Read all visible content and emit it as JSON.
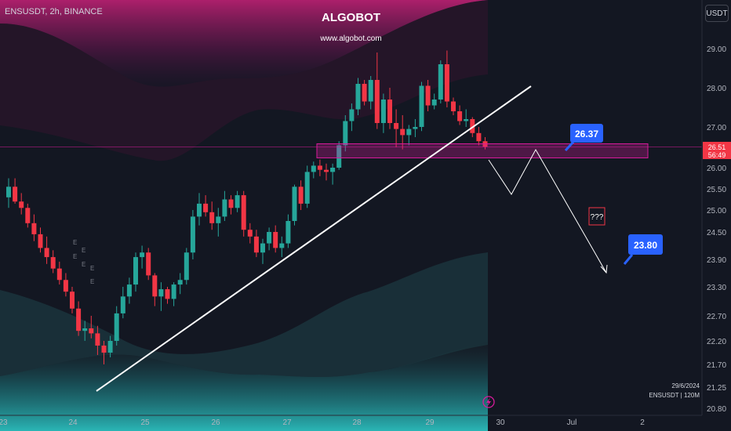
{
  "header": {
    "symbol": "ENSUSDT, 2h, BINANCE",
    "brand": "ALGOBOT",
    "url": "www.algobot.com",
    "unit": "USDT"
  },
  "footer": {
    "date": "29/6/2024",
    "ticker": "ENSUSDT | 120M"
  },
  "colors": {
    "background": "#131722",
    "up": "#26a69a",
    "down": "#f23645",
    "callout": "#2962ff",
    "zone": "#d81b9c"
  },
  "chart_data": {
    "type": "candlestick",
    "y_ticks": [
      29.0,
      28.0,
      27.0,
      26.0,
      25.5,
      25.0,
      24.5,
      23.9,
      23.3,
      22.7,
      22.2,
      21.7,
      21.25,
      20.8
    ],
    "x_ticks": [
      "23",
      "24",
      "25",
      "26",
      "27",
      "28",
      "29",
      "30",
      "Jul",
      "2"
    ],
    "price_labels": {
      "last": "26.51",
      "countdown": "56:49"
    },
    "resistance_label": "26.37",
    "target_label": "23.80",
    "question_label": "???",
    "grid": false
  }
}
